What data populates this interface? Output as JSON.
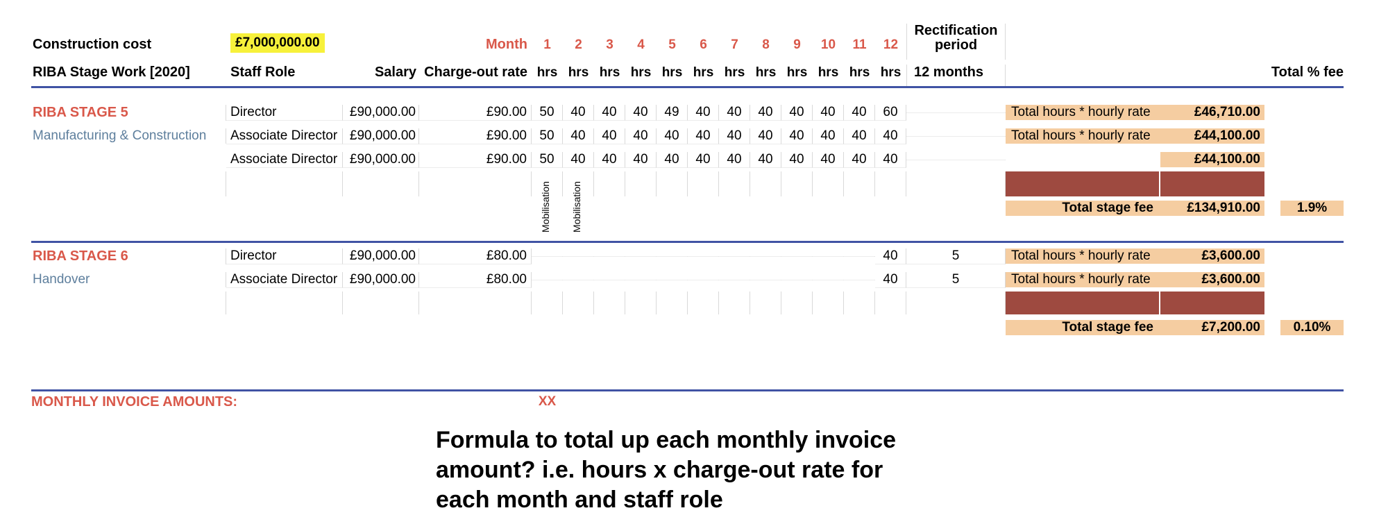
{
  "colors": {
    "accent": "#d9584a",
    "subtitle": "#5e7f9d",
    "yellow": "#f7f13b",
    "peach": "#f5cda1",
    "maroon": "#9e4a40",
    "blue": "#4053a4",
    "grid": "#d9d9d9",
    "rowline": "#ececec"
  },
  "header": {
    "construction_cost_label": "Construction cost",
    "construction_cost_value": "£7,000,000.00",
    "month_label": "Month",
    "months": [
      "1",
      "2",
      "3",
      "4",
      "5",
      "6",
      "7",
      "8",
      "9",
      "10",
      "11",
      "12"
    ],
    "hrs": "hrs",
    "rectification_label": "Rectification period",
    "rectification_duration": "12 months",
    "stage_col": "RIBA Stage Work [2020]",
    "staff_col": "Staff Role",
    "salary_col": "Salary",
    "rate_col": "Charge-out rate",
    "total_pct_col": "Total % fee"
  },
  "stage5": {
    "name": "RIBA STAGE 5",
    "subtitle": "Manufacturing & Construction",
    "rows": [
      {
        "role": "Director",
        "salary": "£90,000.00",
        "rate": "£90.00",
        "hours": [
          "50",
          "40",
          "40",
          "40",
          "49",
          "40",
          "40",
          "40",
          "40",
          "40",
          "40",
          "60"
        ],
        "rect": "",
        "fee_label": "Total hours * hourly rate",
        "fee_amount": "£46,710.00"
      },
      {
        "role": "Associate Director",
        "salary": "£90,000.00",
        "rate": "£90.00",
        "hours": [
          "50",
          "40",
          "40",
          "40",
          "40",
          "40",
          "40",
          "40",
          "40",
          "40",
          "40",
          "40"
        ],
        "rect": "",
        "fee_label": "Total hours * hourly rate",
        "fee_amount": "£44,100.00"
      },
      {
        "role": "Associate Director",
        "salary": "£90,000.00",
        "rate": "£90.00",
        "hours": [
          "50",
          "40",
          "40",
          "40",
          "40",
          "40",
          "40",
          "40",
          "40",
          "40",
          "40",
          "40"
        ],
        "rect": "",
        "fee_label": "",
        "fee_amount": "£44,100.00"
      }
    ],
    "mobilisation": [
      "Mobilisation",
      "Mobilisation"
    ],
    "total_label": "Total stage fee",
    "total_amount": "£134,910.00",
    "total_pct": "1.9%"
  },
  "stage6": {
    "name": "RIBA STAGE 6",
    "subtitle": "Handover",
    "rows": [
      {
        "role": "Director",
        "salary": "£90,000.00",
        "rate": "£80.00",
        "hours": [
          "",
          "",
          "",
          "",
          "",
          "",
          "",
          "",
          "",
          "",
          "",
          "40"
        ],
        "rect": "5",
        "fee_label": "Total hours * hourly rate",
        "fee_amount": "£3,600.00"
      },
      {
        "role": "Associate Director",
        "salary": "£90,000.00",
        "rate": "£80.00",
        "hours": [
          "",
          "",
          "",
          "",
          "",
          "",
          "",
          "",
          "",
          "",
          "",
          "40"
        ],
        "rect": "5",
        "fee_label": "Total hours * hourly rate",
        "fee_amount": "£3,600.00"
      }
    ],
    "total_label": "Total stage fee",
    "total_amount": "£7,200.00",
    "total_pct": "0.10%"
  },
  "invoice": {
    "label": "MONTHLY INVOICE AMOUNTS:",
    "value": "XX"
  },
  "note": {
    "line1": "Formula to total up each monthly invoice",
    "line2": "amount? i.e. hours x charge-out rate for",
    "line3": "each month and staff role"
  }
}
